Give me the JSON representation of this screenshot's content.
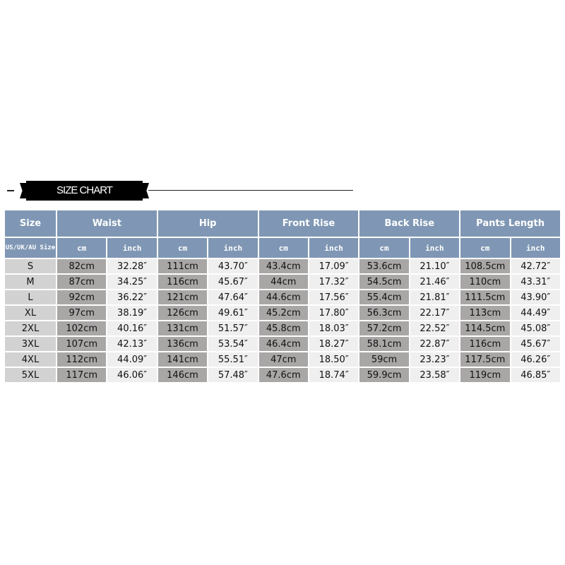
{
  "title": "SIZE CHART",
  "colors": {
    "header": "#7f97b4",
    "size_col": "#d2d2d2",
    "cm_col": "#a9a6a6",
    "inch_col": "#efefef"
  },
  "header": {
    "size": "Size",
    "groups": [
      "Waist",
      "Hip",
      "Front Rise",
      "Back Rise",
      "Pants Length"
    ],
    "size_sub": "US/UK/AU Size",
    "cm": "cm",
    "inch": "inch"
  },
  "rows": [
    [
      "S",
      "82cm",
      "32.28″",
      "111cm",
      "43.70″",
      "43.4cm",
      "17.09″",
      "53.6cm",
      "21.10″",
      "108.5cm",
      "42.72″"
    ],
    [
      "M",
      "87cm",
      "34.25″",
      "116cm",
      "45.67″",
      "44cm",
      "17.32″",
      "54.5cm",
      "21.46″",
      "110cm",
      "43.31″"
    ],
    [
      "L",
      "92cm",
      "36.22″",
      "121cm",
      "47.64″",
      "44.6cm",
      "17.56″",
      "55.4cm",
      "21.81″",
      "111.5cm",
      "43.90″"
    ],
    [
      "XL",
      "97cm",
      "38.19″",
      "126cm",
      "49.61″",
      "45.2cm",
      "17.80″",
      "56.3cm",
      "22.17″",
      "113cm",
      "44.49″"
    ],
    [
      "2XL",
      "102cm",
      "40.16″",
      "131cm",
      "51.57″",
      "45.8cm",
      "18.03″",
      "57.2cm",
      "22.52″",
      "114.5cm",
      "45.08″"
    ],
    [
      "3XL",
      "107cm",
      "42.13″",
      "136cm",
      "53.54″",
      "46.4cm",
      "18.27″",
      "58.1cm",
      "22.87″",
      "116cm",
      "45.67″"
    ],
    [
      "4XL",
      "112cm",
      "44.09″",
      "141cm",
      "55.51″",
      "47cm",
      "18.50″",
      "59cm",
      "23.23″",
      "117.5cm",
      "46.26″"
    ],
    [
      "5XL",
      "117cm",
      "46.06″",
      "146cm",
      "57.48″",
      "47.6cm",
      "18.74″",
      "59.9cm",
      "23.58″",
      "119cm",
      "46.85″"
    ]
  ]
}
